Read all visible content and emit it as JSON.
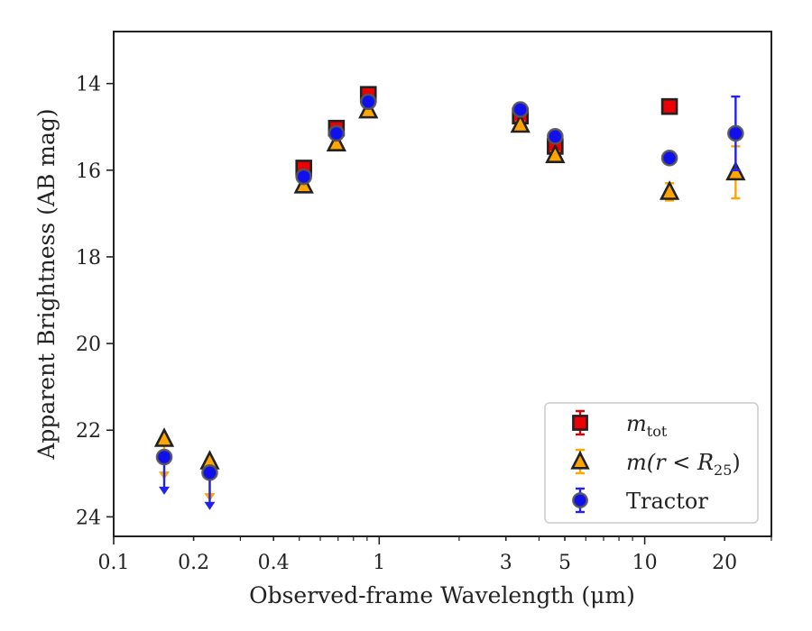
{
  "chart_data": {
    "type": "scatter",
    "xlabel": "Observed-frame Wavelength (μm)",
    "ylabel": "Apparent Brightness (AB mag)",
    "xscale": "log",
    "xlim": [
      0.1,
      30
    ],
    "ylim": [
      24.45,
      12.8
    ],
    "y_inverted": true,
    "x_ticks": [
      {
        "value": 0.1,
        "label": "0.1"
      },
      {
        "value": 0.2,
        "label": "0.2"
      },
      {
        "value": 0.4,
        "label": "0.4"
      },
      {
        "value": 1,
        "label": "1"
      },
      {
        "value": 3,
        "label": "3"
      },
      {
        "value": 5,
        "label": "5"
      },
      {
        "value": 10,
        "label": "10"
      },
      {
        "value": 20,
        "label": "20"
      }
    ],
    "y_ticks": [
      {
        "value": 14,
        "label": "14"
      },
      {
        "value": 16,
        "label": "16"
      },
      {
        "value": 18,
        "label": "18"
      },
      {
        "value": 20,
        "label": "20"
      },
      {
        "value": 22,
        "label": "22"
      },
      {
        "value": 24,
        "label": "24"
      }
    ],
    "grid": false,
    "legend": {
      "placement": "lower-right"
    },
    "series": [
      {
        "name": "m_tot",
        "legend_label": {
          "base": "m",
          "sub": "tot"
        },
        "marker": "square",
        "face_color": "#ee0000",
        "error_color": "#dd0000",
        "points": [
          {
            "x": 0.52,
            "y": 15.95,
            "err": 0.1
          },
          {
            "x": 0.69,
            "y": 15.03,
            "err": 0.1
          },
          {
            "x": 0.91,
            "y": 14.25,
            "err": 0.1
          },
          {
            "x": 3.4,
            "y": 14.75,
            "err": 0.1
          },
          {
            "x": 4.6,
            "y": 15.45,
            "err": 0.1
          },
          {
            "x": 12.4,
            "y": 14.53,
            "err": 0.05
          }
        ]
      },
      {
        "name": "m(r < R25)",
        "legend_label": {
          "base": "m(r < R",
          "sub": "25",
          "tail": ")"
        },
        "marker": "triangle",
        "face_color": "#ffa500",
        "error_color": "#ffa500",
        "points": [
          {
            "x": 0.155,
            "y": 22.2,
            "upper_limit": true,
            "limit_to": 23.1
          },
          {
            "x": 0.23,
            "y": 22.72,
            "upper_limit": true,
            "limit_to": 23.6
          },
          {
            "x": 0.52,
            "y": 16.35,
            "err": 0.08
          },
          {
            "x": 0.69,
            "y": 15.38,
            "err": 0.08
          },
          {
            "x": 0.91,
            "y": 14.62,
            "err": 0.08
          },
          {
            "x": 3.4,
            "y": 14.95,
            "err": 0.08
          },
          {
            "x": 4.6,
            "y": 15.65,
            "err": 0.08
          },
          {
            "x": 12.4,
            "y": 16.5,
            "err": 0.2
          },
          {
            "x": 22.0,
            "y": 16.05,
            "err": 0.6
          }
        ]
      },
      {
        "name": "Tractor",
        "legend_label": {
          "base": "Tractor"
        },
        "marker": "circle",
        "face_color": "#1010ee",
        "error_color": "#2222ee",
        "points": [
          {
            "x": 0.155,
            "y": 22.62,
            "upper_limit": true,
            "limit_to": 23.45
          },
          {
            "x": 0.23,
            "y": 22.98,
            "upper_limit": true,
            "limit_to": 23.8
          },
          {
            "x": 0.52,
            "y": 16.15,
            "err": 0.06
          },
          {
            "x": 0.69,
            "y": 15.15,
            "err": 0.06
          },
          {
            "x": 0.91,
            "y": 14.42,
            "err": 0.06
          },
          {
            "x": 3.4,
            "y": 14.6,
            "err": 0.06
          },
          {
            "x": 4.6,
            "y": 15.22,
            "err": 0.06
          },
          {
            "x": 12.4,
            "y": 15.72,
            "err": 0.06
          },
          {
            "x": 22.0,
            "y": 15.15,
            "err": 0.85
          }
        ]
      }
    ]
  }
}
